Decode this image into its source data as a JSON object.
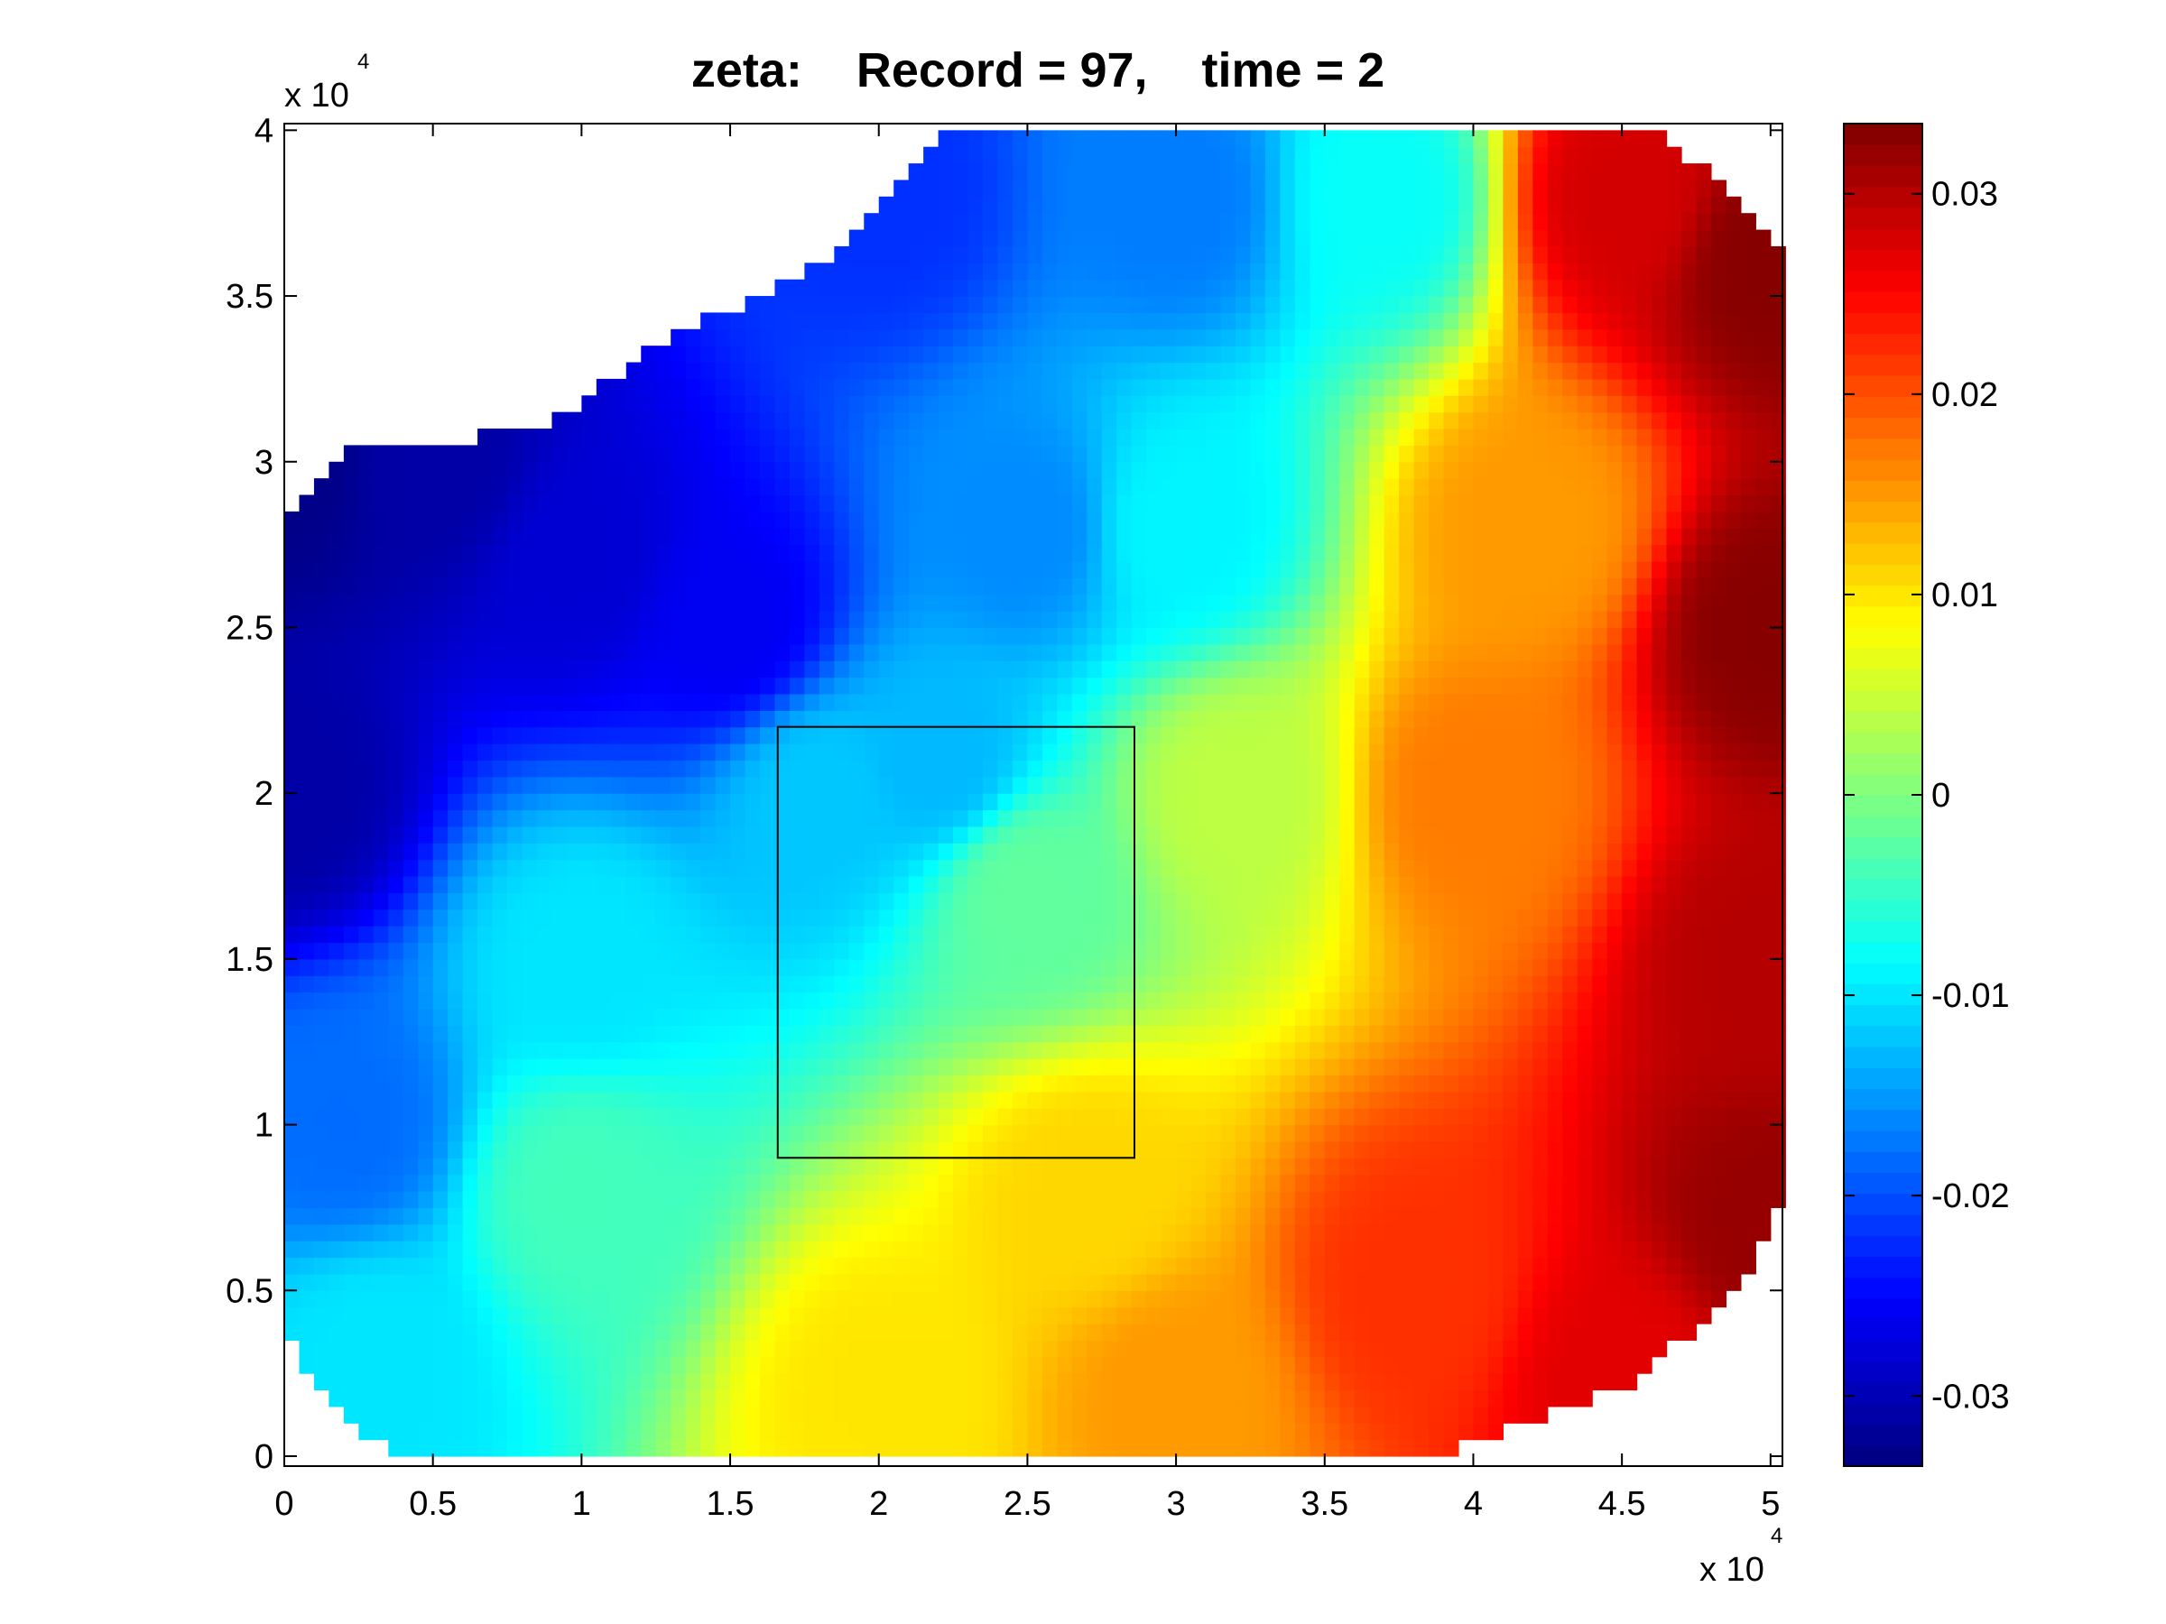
{
  "chart_data": {
    "type": "heatmap",
    "title": "zeta:    Record = 97,    time = 2",
    "xlabel": "",
    "ylabel": "",
    "x_exponent_label": "x 10",
    "x_exponent_power": "4",
    "y_exponent_label": "x 10",
    "y_exponent_power": "4",
    "xlim": [
      0,
      50400
    ],
    "ylim": [
      -300,
      40200
    ],
    "x_ticks": [
      0,
      5000,
      10000,
      15000,
      20000,
      25000,
      30000,
      35000,
      40000,
      45000,
      50000
    ],
    "x_tick_labels": [
      "0",
      "0.5",
      "1",
      "1.5",
      "2",
      "2.5",
      "3",
      "3.5",
      "4",
      "4.5",
      "5"
    ],
    "y_ticks": [
      0,
      5000,
      10000,
      15000,
      20000,
      25000,
      30000,
      35000,
      40000
    ],
    "y_tick_labels": [
      "0",
      "0.5",
      "1",
      "1.5",
      "2",
      "2.5",
      "3",
      "3.5",
      "4"
    ],
    "colorbar": {
      "colormap": "jet",
      "clim": [
        -0.0335,
        0.0335
      ],
      "ticks": [
        -0.03,
        -0.02,
        -0.01,
        0,
        0.01,
        0.02,
        0.03
      ],
      "tick_labels": [
        "-0.03",
        "-0.02",
        "-0.01",
        "0",
        "0.01",
        "0.02",
        "0.03"
      ]
    },
    "domain_polygon": [
      [
        200,
        3500
      ],
      [
        1500,
        1500
      ],
      [
        3800,
        0
      ],
      [
        39000,
        0
      ],
      [
        45000,
        2000
      ],
      [
        49000,
        5000
      ],
      [
        50300,
        7500
      ],
      [
        50300,
        36500
      ],
      [
        49000,
        38000
      ],
      [
        46000,
        40000
      ],
      [
        22200,
        40000
      ],
      [
        20500,
        38000
      ],
      [
        18000,
        36000
      ],
      [
        15500,
        34800
      ],
      [
        12500,
        33500
      ],
      [
        9500,
        31400
      ],
      [
        5500,
        30500
      ],
      [
        2000,
        30500
      ],
      [
        200,
        28500
      ]
    ],
    "field_anchor_points": [
      [
        0,
        30000,
        -0.033
      ],
      [
        5000,
        30000,
        -0.031
      ],
      [
        10000,
        27000,
        -0.028
      ],
      [
        20000,
        38000,
        -0.022
      ],
      [
        30000,
        38000,
        -0.017
      ],
      [
        37000,
        38000,
        -0.008
      ],
      [
        45000,
        38000,
        0.028
      ],
      [
        50000,
        36000,
        0.033
      ],
      [
        0,
        20000,
        -0.031
      ],
      [
        15000,
        25000,
        -0.026
      ],
      [
        25000,
        28000,
        -0.016
      ],
      [
        30000,
        28000,
        -0.009
      ],
      [
        42000,
        28000,
        0.015
      ],
      [
        50000,
        25000,
        0.033
      ],
      [
        2000,
        10000,
        -0.018
      ],
      [
        10000,
        15000,
        -0.01
      ],
      [
        18000,
        20000,
        -0.012
      ],
      [
        22000,
        21000,
        -0.013
      ],
      [
        25000,
        17000,
        -0.002
      ],
      [
        32000,
        20000,
        0.004
      ],
      [
        40000,
        20000,
        0.017
      ],
      [
        50000,
        15000,
        0.03
      ],
      [
        3000,
        3000,
        -0.01
      ],
      [
        10000,
        8000,
        -0.004
      ],
      [
        20000,
        2000,
        0.01
      ],
      [
        27000,
        8000,
        0.011
      ],
      [
        30000,
        2000,
        0.015
      ],
      [
        38000,
        5000,
        0.022
      ],
      [
        45000,
        2500,
        0.027
      ],
      [
        50000,
        7000,
        0.032
      ]
    ],
    "annotation_box": {
      "x": [
        16600,
        28600
      ],
      "y": [
        9000,
        22000
      ]
    }
  }
}
